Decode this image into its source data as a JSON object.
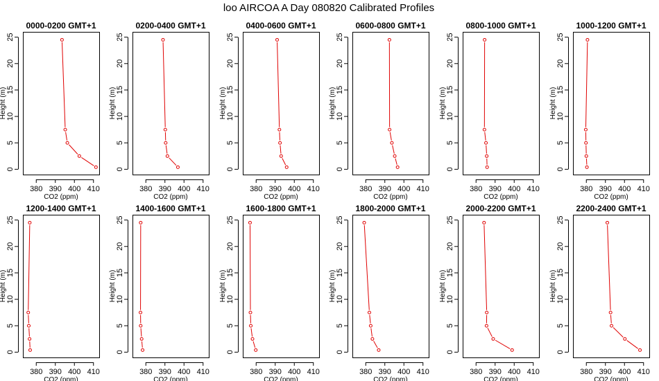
{
  "title": "loo AIRCOA A  Day 080820  Calibrated Profiles",
  "chart_data": {
    "type": "line",
    "xlabel": "CO2 (ppm)",
    "ylabel": "Height (m)",
    "xlim": [
      373,
      413
    ],
    "ylim": [
      -1,
      26
    ],
    "xticks": [
      380,
      390,
      400,
      410
    ],
    "yticks": [
      0,
      5,
      10,
      15,
      20,
      25
    ],
    "grid": false,
    "line_color": "#e00000",
    "panels": [
      {
        "title": "0000-0200 GMT+1",
        "points": [
          [
            393.5,
            24.5
          ],
          [
            395.2,
            7.5
          ],
          [
            396.3,
            5.0
          ],
          [
            402.6,
            2.5
          ],
          [
            411.3,
            0.4
          ]
        ]
      },
      {
        "title": "0200-0400 GMT+1",
        "points": [
          [
            389.0,
            24.5
          ],
          [
            390.2,
            7.5
          ],
          [
            390.4,
            5.0
          ],
          [
            391.3,
            2.5
          ],
          [
            396.8,
            0.4
          ]
        ]
      },
      {
        "title": "0400-0600 GMT+1",
        "points": [
          [
            391.0,
            24.5
          ],
          [
            392.2,
            7.5
          ],
          [
            392.5,
            5.0
          ],
          [
            393.1,
            2.5
          ],
          [
            396.0,
            0.4
          ]
        ]
      },
      {
        "title": "0600-0800 GMT+1",
        "points": [
          [
            392.4,
            24.5
          ],
          [
            392.5,
            7.5
          ],
          [
            393.7,
            5.0
          ],
          [
            395.2,
            2.5
          ],
          [
            396.7,
            0.4
          ]
        ]
      },
      {
        "title": "0800-1000 GMT+1",
        "points": [
          [
            384.5,
            24.5
          ],
          [
            384.4,
            7.5
          ],
          [
            385.2,
            5.0
          ],
          [
            385.6,
            2.5
          ],
          [
            385.8,
            0.4
          ]
        ]
      },
      {
        "title": "1000-1200 GMT+1",
        "points": [
          [
            380.6,
            24.5
          ],
          [
            379.7,
            7.5
          ],
          [
            379.8,
            5.0
          ],
          [
            380.0,
            2.5
          ],
          [
            380.3,
            0.4
          ]
        ]
      },
      {
        "title": "1200-1400 GMT+1",
        "points": [
          [
            376.6,
            24.5
          ],
          [
            375.8,
            7.5
          ],
          [
            376.1,
            5.0
          ],
          [
            376.5,
            2.5
          ],
          [
            376.8,
            0.4
          ]
        ]
      },
      {
        "title": "1400-1600 GMT+1",
        "points": [
          [
            377.3,
            24.5
          ],
          [
            377.2,
            7.5
          ],
          [
            377.3,
            5.0
          ],
          [
            377.8,
            2.5
          ],
          [
            378.3,
            0.4
          ]
        ]
      },
      {
        "title": "1600-1800 GMT+1",
        "points": [
          [
            376.8,
            24.5
          ],
          [
            377.0,
            7.5
          ],
          [
            377.2,
            5.0
          ],
          [
            378.1,
            2.5
          ],
          [
            379.8,
            0.4
          ]
        ]
      },
      {
        "title": "1800-2000 GMT+1",
        "points": [
          [
            379.2,
            24.5
          ],
          [
            381.9,
            7.5
          ],
          [
            382.6,
            5.0
          ],
          [
            383.5,
            2.5
          ],
          [
            386.8,
            0.4
          ]
        ]
      },
      {
        "title": "2000-2200 GMT+1",
        "points": [
          [
            384.2,
            24.5
          ],
          [
            385.6,
            7.5
          ],
          [
            385.5,
            5.0
          ],
          [
            389.0,
            2.5
          ],
          [
            398.9,
            0.4
          ]
        ]
      },
      {
        "title": "2200-2400 GMT+1",
        "points": [
          [
            391.0,
            24.5
          ],
          [
            392.7,
            7.5
          ],
          [
            393.2,
            5.0
          ],
          [
            400.2,
            2.5
          ],
          [
            408.1,
            0.4
          ]
        ]
      }
    ]
  }
}
